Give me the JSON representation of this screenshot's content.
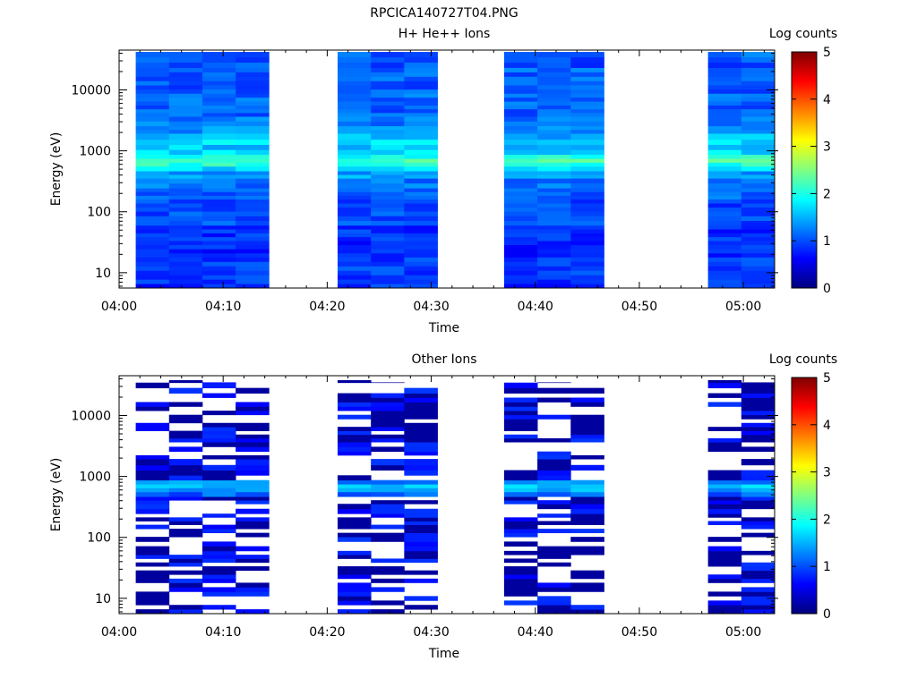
{
  "figure_title": "RPCICA140727T04.PNG",
  "colors": {
    "colormap": [
      "#00007f",
      "#0000ff",
      "#0080ff",
      "#00ffff",
      "#80ff80",
      "#ffff00",
      "#ff8000",
      "#ff0000",
      "#7f0000"
    ],
    "axis": "#000000",
    "background": "#ffffff"
  },
  "chart_data": [
    {
      "type": "heatmap",
      "title": "H+ He++ Ions",
      "xlabel": "Time",
      "ylabel": "Energy (eV)",
      "x_ticks": [
        "04:00",
        "04:10",
        "04:20",
        "04:30",
        "04:40",
        "04:50",
        "05:00"
      ],
      "x_tick_minutes": [
        0,
        10,
        20,
        30,
        40,
        50,
        60
      ],
      "xlim_minutes": [
        0,
        63
      ],
      "y_scale": "log",
      "y_ticks": [
        "10",
        "100",
        "1000",
        "10000"
      ],
      "y_tick_values": [
        10,
        100,
        1000,
        10000
      ],
      "ylim": [
        5.6,
        45000
      ],
      "colorbar": {
        "label": "Log counts",
        "ticks": [
          "0",
          "1",
          "2",
          "3",
          "4",
          "5"
        ],
        "range": [
          0,
          5
        ]
      },
      "time_columns": [
        {
          "start": 1.6,
          "end": 4.8
        },
        {
          "start": 4.8,
          "end": 8.0
        },
        {
          "start": 8.0,
          "end": 11.2
        },
        {
          "start": 11.2,
          "end": 14.4
        },
        {
          "start": 21.0,
          "end": 24.2
        },
        {
          "start": 24.2,
          "end": 27.4
        },
        {
          "start": 27.4,
          "end": 30.6
        },
        {
          "start": 37.0,
          "end": 40.2
        },
        {
          "start": 40.2,
          "end": 43.4
        },
        {
          "start": 43.4,
          "end": 46.6
        },
        {
          "start": 56.6,
          "end": 59.8
        },
        {
          "start": 59.8,
          "end": 63.0
        }
      ],
      "energy_profile": [
        {
          "energy": 6.5,
          "log_counts": 0.85
        },
        {
          "energy": 13,
          "log_counts": 0.9
        },
        {
          "energy": 25,
          "log_counts": 0.8
        },
        {
          "energy": 45,
          "log_counts": 0.85
        },
        {
          "energy": 80,
          "log_counts": 1.0
        },
        {
          "energy": 130,
          "log_counts": 0.95
        },
        {
          "energy": 200,
          "log_counts": 1.1
        },
        {
          "energy": 300,
          "log_counts": 1.2
        },
        {
          "energy": 420,
          "log_counts": 1.4
        },
        {
          "energy": 520,
          "log_counts": 1.7
        },
        {
          "energy": 600,
          "log_counts": 2.05
        },
        {
          "energy": 700,
          "log_counts": 2.25
        },
        {
          "energy": 800,
          "log_counts": 2.0
        },
        {
          "energy": 950,
          "log_counts": 1.7
        },
        {
          "energy": 1150,
          "log_counts": 1.6
        },
        {
          "energy": 1400,
          "log_counts": 1.75
        },
        {
          "energy": 1700,
          "log_counts": 1.5
        },
        {
          "energy": 2200,
          "log_counts": 1.3
        },
        {
          "energy": 3000,
          "log_counts": 1.2
        },
        {
          "energy": 4500,
          "log_counts": 1.1
        },
        {
          "energy": 7000,
          "log_counts": 1.15
        },
        {
          "energy": 11000,
          "log_counts": 1.05
        },
        {
          "energy": 18000,
          "log_counts": 1.1
        },
        {
          "energy": 30000,
          "log_counts": 1.0
        },
        {
          "energy": 40000,
          "log_counts": 1.1
        }
      ]
    },
    {
      "type": "heatmap",
      "title": "Other Ions",
      "xlabel": "Time",
      "ylabel": "Energy (eV)",
      "x_ticks": [
        "04:00",
        "04:10",
        "04:20",
        "04:30",
        "04:40",
        "04:50",
        "05:00"
      ],
      "x_tick_minutes": [
        0,
        10,
        20,
        30,
        40,
        50,
        60
      ],
      "xlim_minutes": [
        0,
        63
      ],
      "y_scale": "log",
      "y_ticks": [
        "10",
        "100",
        "1000",
        "10000"
      ],
      "y_tick_values": [
        10,
        100,
        1000,
        10000
      ],
      "ylim": [
        5.6,
        45000
      ],
      "colorbar": {
        "label": "Log counts",
        "ticks": [
          "0",
          "1",
          "2",
          "3",
          "4",
          "5"
        ],
        "range": [
          0,
          5
        ]
      },
      "time_columns": [
        {
          "start": 1.6,
          "end": 4.8
        },
        {
          "start": 4.8,
          "end": 8.0
        },
        {
          "start": 8.0,
          "end": 11.2
        },
        {
          "start": 11.2,
          "end": 14.4
        },
        {
          "start": 21.0,
          "end": 24.2
        },
        {
          "start": 24.2,
          "end": 27.4
        },
        {
          "start": 27.4,
          "end": 30.6
        },
        {
          "start": 37.0,
          "end": 40.2
        },
        {
          "start": 40.2,
          "end": 43.4
        },
        {
          "start": 43.4,
          "end": 46.6
        },
        {
          "start": 56.6,
          "end": 59.8
        },
        {
          "start": 59.8,
          "end": 63.0
        }
      ],
      "energy_profile": [
        {
          "energy": 6.5,
          "log_counts": 0.45
        },
        {
          "energy": 13,
          "log_counts": 0.4
        },
        {
          "energy": 25,
          "log_counts": 0.4
        },
        {
          "energy": 45,
          "log_counts": 0.45
        },
        {
          "energy": 80,
          "log_counts": 0.5
        },
        {
          "energy": 130,
          "log_counts": 0.5
        },
        {
          "energy": 200,
          "log_counts": 0.55
        },
        {
          "energy": 300,
          "log_counts": 0.6
        },
        {
          "energy": 420,
          "log_counts": 0.9
        },
        {
          "energy": 520,
          "log_counts": 1.1
        },
        {
          "energy": 600,
          "log_counts": 1.45
        },
        {
          "energy": 700,
          "log_counts": 1.55
        },
        {
          "energy": 800,
          "log_counts": 1.3
        },
        {
          "energy": 950,
          "log_counts": 0.9
        },
        {
          "energy": 1150,
          "log_counts": 0.6
        },
        {
          "energy": 1400,
          "log_counts": 0.5
        },
        {
          "energy": 1700,
          "log_counts": 0.45
        },
        {
          "energy": 2200,
          "log_counts": 0.4
        },
        {
          "energy": 3000,
          "log_counts": 0.35
        },
        {
          "energy": 4500,
          "log_counts": 0.35
        },
        {
          "energy": 7000,
          "log_counts": 0.3
        },
        {
          "energy": 11000,
          "log_counts": 0.3
        },
        {
          "energy": 18000,
          "log_counts": 0.3
        },
        {
          "energy": 30000,
          "log_counts": 0.3
        },
        {
          "energy": 40000,
          "log_counts": 0.3
        }
      ]
    }
  ]
}
